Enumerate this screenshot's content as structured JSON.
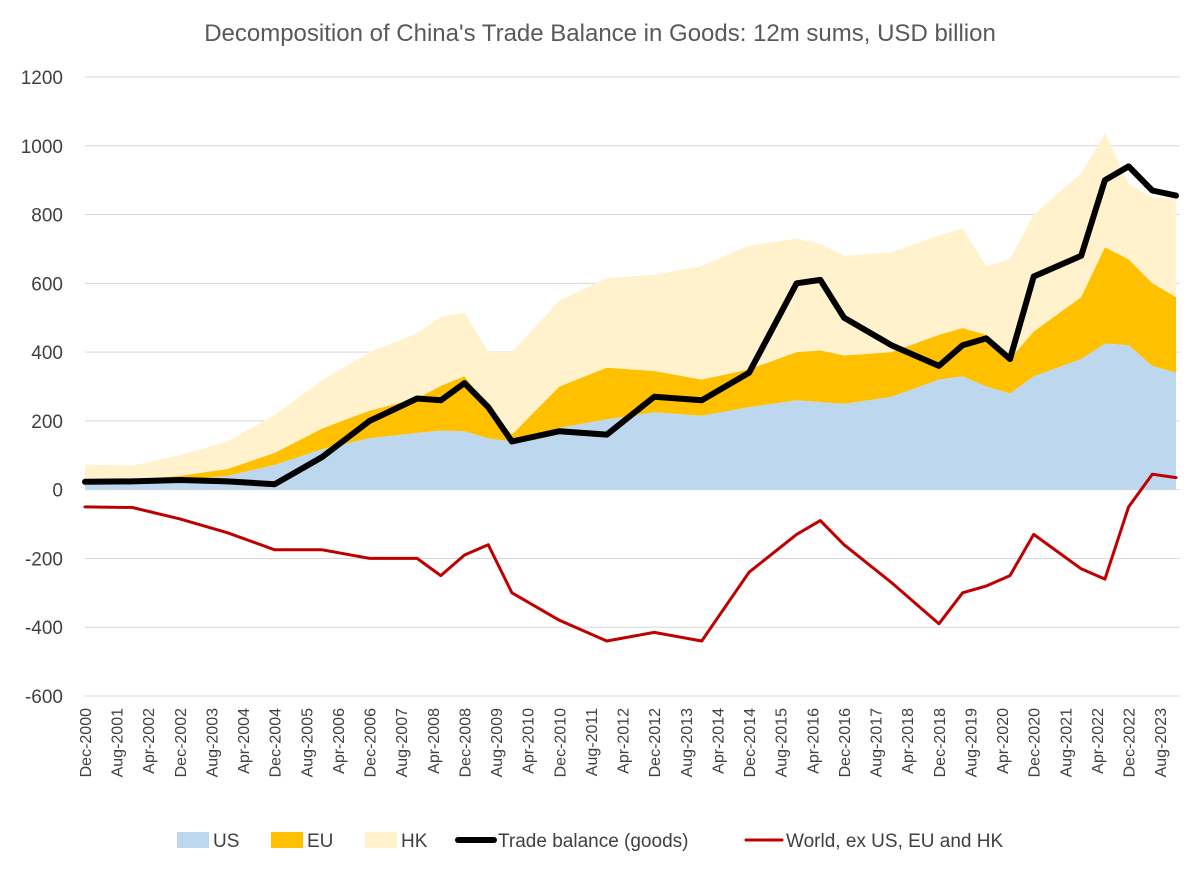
{
  "chart_data": {
    "type": "area",
    "title": "Decomposition of China's Trade Balance in Goods: 12m sums, USD billion",
    "xlabel": "",
    "ylabel": "",
    "ylim": [
      -600,
      1200
    ],
    "yticks": [
      1200,
      1000,
      800,
      600,
      400,
      200,
      0,
      -200,
      -400,
      -600
    ],
    "grid": true,
    "legend_position": "bottom",
    "x_tick_labels": [
      "Dec-2000",
      "Aug-2001",
      "Apr-2002",
      "Dec-2002",
      "Aug-2003",
      "Apr-2004",
      "Dec-2004",
      "Aug-2005",
      "Apr-2006",
      "Dec-2006",
      "Aug-2007",
      "Apr-2008",
      "Dec-2008",
      "Aug-2009",
      "Apr-2010",
      "Dec-2010",
      "Aug-2011",
      "Apr-2012",
      "Dec-2012",
      "Aug-2013",
      "Apr-2014",
      "Dec-2014",
      "Aug-2015",
      "Apr-2016",
      "Dec-2016",
      "Aug-2017",
      "Apr-2018",
      "Dec-2018",
      "Aug-2019",
      "Apr-2020",
      "Dec-2020",
      "Aug-2021",
      "Apr-2022",
      "Dec-2022",
      "Aug-2023"
    ],
    "x_dates": [
      "Dec-2000",
      "Dec-2001",
      "Dec-2002",
      "Dec-2003",
      "Dec-2004",
      "Dec-2005",
      "Dec-2006",
      "Dec-2007",
      "Jun-2008",
      "Dec-2008",
      "Jun-2009",
      "Dec-2009",
      "Dec-2010",
      "Dec-2011",
      "Dec-2012",
      "Dec-2013",
      "Dec-2014",
      "Dec-2015",
      "Jun-2016",
      "Dec-2016",
      "Dec-2017",
      "Dec-2018",
      "Jun-2019",
      "Dec-2019",
      "Jun-2020",
      "Dec-2020",
      "Dec-2021",
      "Jun-2022",
      "Dec-2022",
      "Jun-2023",
      "Dec-2023"
    ],
    "series": [
      {
        "name": "US",
        "kind": "stacked-area",
        "color": "#BDD7EE",
        "values": [
          25,
          22,
          28,
          40,
          72,
          118,
          150,
          165,
          172,
          170,
          150,
          140,
          180,
          205,
          225,
          215,
          240,
          260,
          255,
          250,
          270,
          320,
          330,
          300,
          280,
          330,
          380,
          425,
          420,
          360,
          340
        ]
      },
      {
        "name": "EU",
        "kind": "stacked-area",
        "color": "#FFC000",
        "values": [
          5,
          8,
          12,
          20,
          35,
          60,
          80,
          100,
          130,
          160,
          90,
          20,
          120,
          150,
          120,
          105,
          110,
          140,
          150,
          140,
          130,
          130,
          140,
          150,
          100,
          130,
          180,
          280,
          250,
          240,
          220
        ]
      },
      {
        "name": "HK",
        "kind": "stacked-area",
        "color": "#FFF2CC",
        "values": [
          43,
          40,
          60,
          80,
          110,
          140,
          170,
          190,
          200,
          185,
          160,
          240,
          250,
          260,
          280,
          330,
          360,
          330,
          310,
          290,
          290,
          290,
          290,
          200,
          290,
          340,
          360,
          330,
          220,
          250,
          285
        ]
      },
      {
        "name": "Trade balance (goods)",
        "kind": "line",
        "color": "#000000",
        "values": [
          23,
          24,
          28,
          24,
          16,
          95,
          200,
          265,
          260,
          310,
          240,
          140,
          170,
          160,
          270,
          260,
          340,
          600,
          610,
          500,
          420,
          360,
          420,
          440,
          380,
          620,
          680,
          900,
          940,
          870,
          855
        ]
      },
      {
        "name": "World, ex US, EU and HK",
        "kind": "line",
        "color": "#C00000",
        "values": [
          -50,
          -52,
          -85,
          -125,
          -175,
          -175,
          -200,
          -200,
          -250,
          -190,
          -160,
          -300,
          -380,
          -440,
          -415,
          -440,
          -240,
          -130,
          -90,
          -160,
          -270,
          -390,
          -300,
          -280,
          -250,
          -130,
          -230,
          -260,
          -50,
          45,
          35
        ]
      }
    ]
  }
}
